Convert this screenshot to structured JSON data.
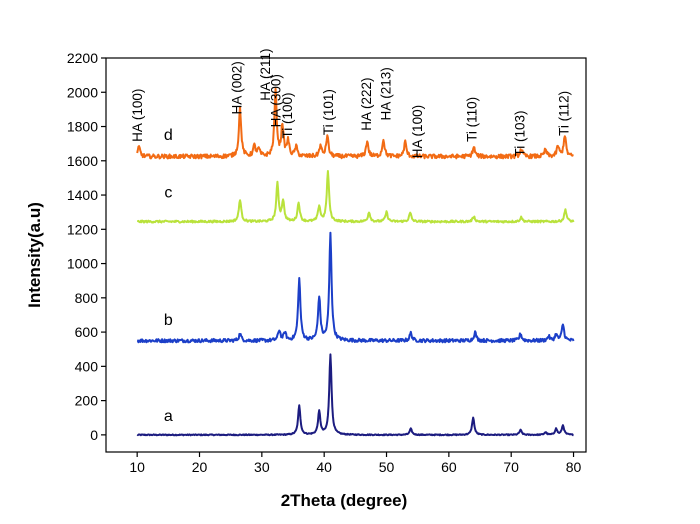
{
  "chart_data": {
    "type": "line",
    "title": "",
    "xlabel": "2Theta (degree)",
    "ylabel": "Intensity(a.u)",
    "xlim": [
      5,
      82
    ],
    "ylim": [
      -100,
      2200
    ],
    "xticks": [
      10,
      20,
      30,
      40,
      50,
      60,
      70,
      80
    ],
    "yticks": [
      0,
      200,
      400,
      600,
      800,
      1000,
      1200,
      1400,
      1600,
      1800,
      2000,
      2200
    ],
    "grid": false,
    "series": [
      {
        "name": "a",
        "color": "#1c1c80",
        "baseline": 0,
        "noise": 3,
        "label_pos": [
          15,
          80
        ],
        "peaks": [
          [
            36.0,
            170
          ],
          [
            39.2,
            135
          ],
          [
            41.0,
            470
          ],
          [
            53.9,
            35
          ],
          [
            63.9,
            100
          ],
          [
            71.5,
            28
          ],
          [
            75.5,
            15
          ],
          [
            77.2,
            35
          ],
          [
            78.3,
            55
          ]
        ]
      },
      {
        "name": "b",
        "color": "#1c3fc8",
        "baseline": 550,
        "noise": 10,
        "label_pos": [
          15,
          640
        ],
        "peaks": [
          [
            26.5,
            40
          ],
          [
            32.8,
            60
          ],
          [
            33.7,
            45
          ],
          [
            36.0,
            360
          ],
          [
            39.2,
            255
          ],
          [
            41.0,
            620
          ],
          [
            53.9,
            45
          ],
          [
            64.2,
            50
          ],
          [
            71.5,
            40
          ],
          [
            76.0,
            25
          ],
          [
            77.2,
            35
          ],
          [
            78.3,
            95
          ]
        ]
      },
      {
        "name": "c",
        "color": "#b9e23c",
        "baseline": 1245,
        "noise": 6,
        "label_pos": [
          15,
          1385
        ],
        "peaks": [
          [
            26.5,
            130
          ],
          [
            32.5,
            220
          ],
          [
            33.4,
            120
          ],
          [
            35.9,
            110
          ],
          [
            39.2,
            90
          ],
          [
            40.6,
            290
          ],
          [
            47.2,
            55
          ],
          [
            50.0,
            55
          ],
          [
            53.8,
            50
          ],
          [
            64.0,
            30
          ],
          [
            71.6,
            25
          ],
          [
            78.7,
            70
          ]
        ]
      },
      {
        "name": "d",
        "color": "#f26b14",
        "baseline": 1625,
        "noise": 12,
        "label_pos": [
          15,
          1720
        ],
        "peaks": [
          [
            10.3,
            55
          ],
          [
            26.5,
            280
          ],
          [
            28.8,
            60
          ],
          [
            29.5,
            40
          ],
          [
            32.2,
            380
          ],
          [
            33.3,
            180
          ],
          [
            34.2,
            90
          ],
          [
            35.5,
            55
          ],
          [
            39.4,
            60
          ],
          [
            40.5,
            120
          ],
          [
            46.9,
            90
          ],
          [
            49.5,
            100
          ],
          [
            53.0,
            85
          ],
          [
            64.0,
            55
          ],
          [
            71.6,
            45
          ],
          [
            75.5,
            40
          ],
          [
            77.5,
            60
          ],
          [
            78.6,
            125
          ]
        ]
      }
    ],
    "annotations": [
      {
        "text": "HA (100)",
        "x": 10.8,
        "y": 1710
      },
      {
        "text": "HA (002)",
        "x": 26.7,
        "y": 1870
      },
      {
        "text": "HA (211)",
        "x": 31.3,
        "y": 1950
      },
      {
        "text": "HA (300)",
        "x": 33.0,
        "y": 1795
      },
      {
        "text": "Ti (100)",
        "x": 34.8,
        "y": 1730
      },
      {
        "text": "Ti (101)",
        "x": 41.4,
        "y": 1750
      },
      {
        "text": "HA (222)",
        "x": 47.5,
        "y": 1775
      },
      {
        "text": "HA (213)",
        "x": 50.6,
        "y": 1835
      },
      {
        "text": "HA (100)",
        "x": 55.7,
        "y": 1615
      },
      {
        "text": "Ti (110)",
        "x": 64.4,
        "y": 1710
      },
      {
        "text": "Ti (103)",
        "x": 72.1,
        "y": 1625
      },
      {
        "text": "Ti (112)",
        "x": 79.2,
        "y": 1745
      }
    ]
  }
}
